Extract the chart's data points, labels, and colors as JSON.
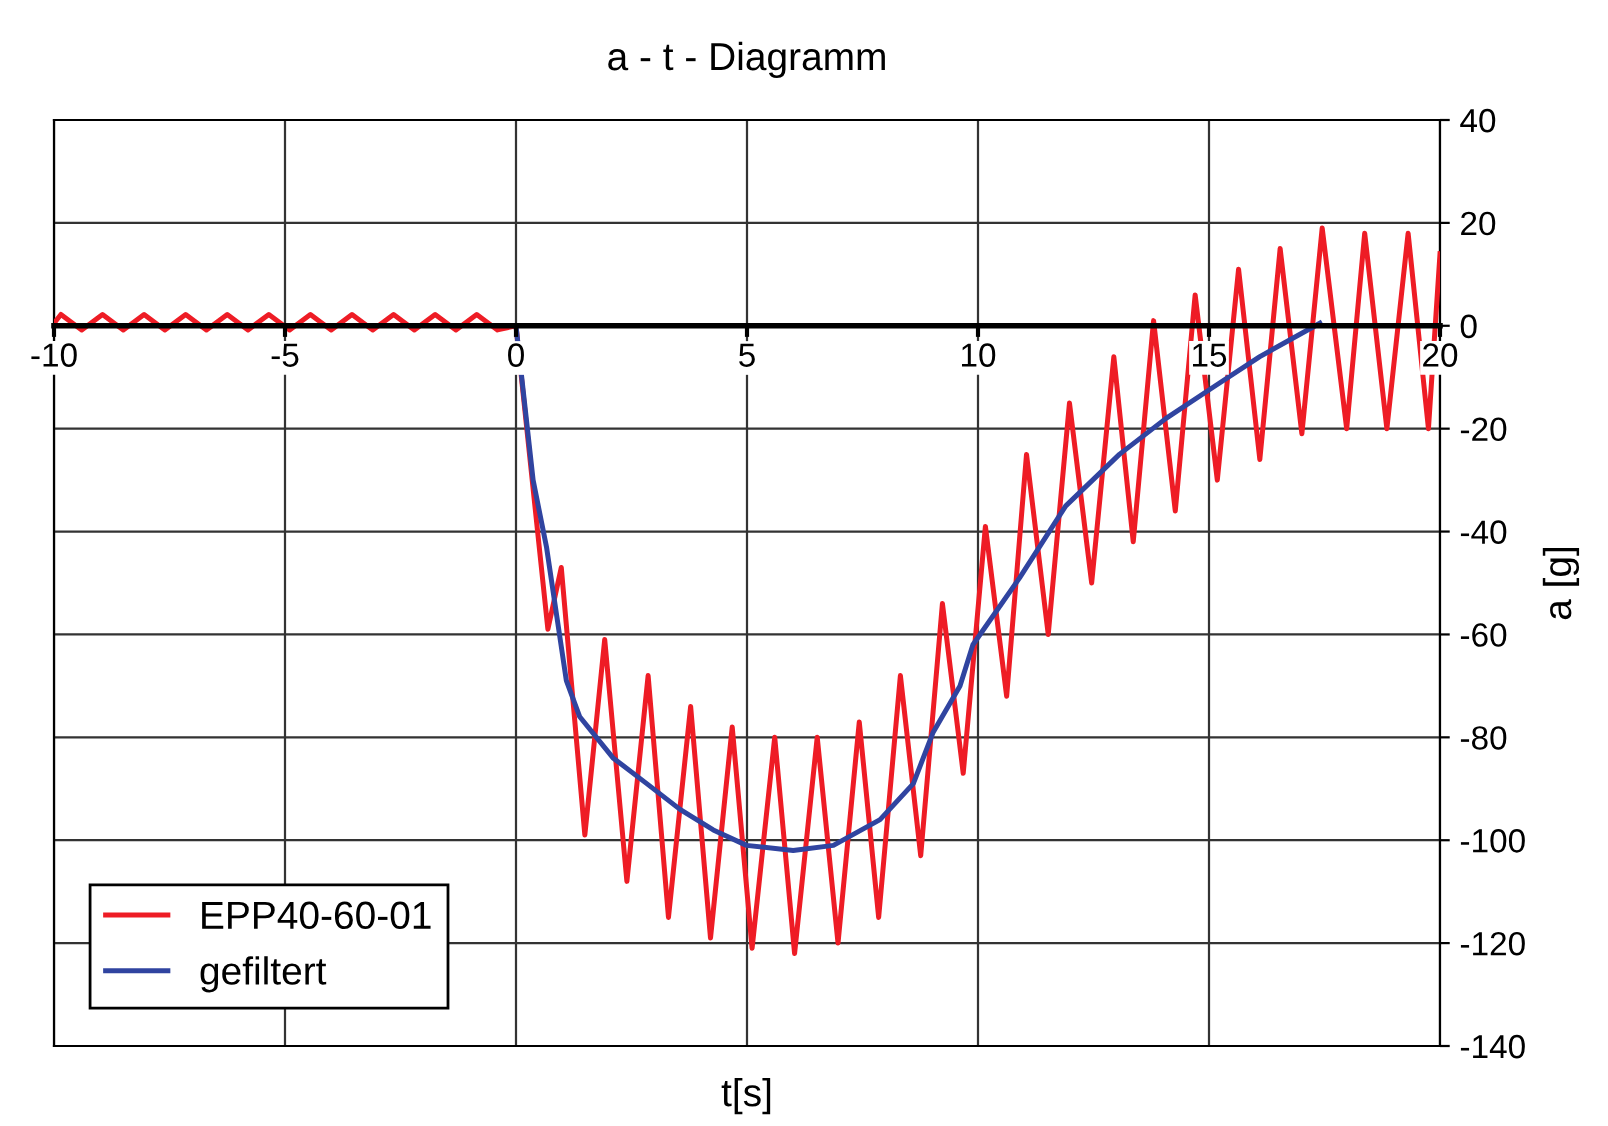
{
  "chart_data": {
    "type": "line",
    "title": "a - t - Diagramm",
    "xlabel": "t[s]",
    "ylabel": "a [g]",
    "xlim": [
      -10,
      20
    ],
    "xticks": [
      -10,
      -5,
      0,
      5,
      10,
      15,
      20
    ],
    "ylim": [
      -140,
      40
    ],
    "yticks": [
      -140,
      -120,
      -100,
      -80,
      -60,
      -40,
      -20,
      0,
      20,
      40
    ],
    "grid": true,
    "legend": "bottom left",
    "line_style": "solid",
    "marker": "none",
    "series": [
      {
        "name": "EPP40-60-01",
        "color": "#ee1c25",
        "x": [
          -10,
          -9.85,
          -9.4,
          -8.95,
          -8.5,
          -8.05,
          -7.6,
          -7.15,
          -6.7,
          -6.25,
          -5.8,
          -5.35,
          -4.9,
          -4.45,
          -4.0,
          -3.55,
          -3.1,
          -2.65,
          -2.2,
          -1.75,
          -1.3,
          -0.85,
          -0.4,
          0,
          0.69,
          0.98,
          1.49,
          1.92,
          2.4,
          2.86,
          3.3,
          3.78,
          4.21,
          4.68,
          5.11,
          5.6,
          6.03,
          6.52,
          6.97,
          7.43,
          7.85,
          8.32,
          8.76,
          9.23,
          9.68,
          10.16,
          10.62,
          11.05,
          11.52,
          11.98,
          12.46,
          12.94,
          13.36,
          13.8,
          14.27,
          14.7,
          15.18,
          15.64,
          16.1,
          16.54,
          17.01,
          17.45,
          17.98,
          18.37,
          18.85,
          19.31,
          19.75,
          20
        ],
        "values": [
          0.5,
          2.2,
          -0.8,
          2.2,
          -0.8,
          2.2,
          -0.8,
          2.2,
          -0.8,
          2.2,
          -0.8,
          2.2,
          -0.8,
          2.2,
          -0.8,
          2.2,
          -0.8,
          2.2,
          -0.8,
          2.2,
          -0.8,
          2.2,
          -0.8,
          0,
          -59,
          -47,
          -99,
          -61,
          -108,
          -68,
          -115,
          -74,
          -119,
          -78,
          -121,
          -80,
          -122,
          -80,
          -120,
          -77,
          -115,
          -68,
          -103,
          -54,
          -87,
          -39,
          -72,
          -25,
          -60,
          -15,
          -50,
          -6,
          -42,
          1,
          -36,
          6,
          -30,
          11,
          -26,
          15,
          -21,
          19,
          -20,
          18,
          -20,
          18,
          -20,
          14
        ]
      },
      {
        "name": "gefiltert",
        "color": "#3044a0",
        "x": [
          0,
          0.37,
          0.66,
          1.09,
          1.38,
          2.1,
          2.83,
          3.55,
          4.27,
          4.99,
          6.0,
          6.87,
          7.88,
          8.6,
          9.03,
          9.61,
          9.89,
          10.9,
          11.9,
          13.06,
          14.07,
          15.08,
          16.1,
          17.4
        ],
        "values": [
          0,
          -30,
          -43,
          -69,
          -76,
          -84,
          -89,
          -94,
          -98,
          -101,
          -102,
          -101,
          -96,
          -89,
          -79,
          -70,
          -62,
          -49,
          -35,
          -25,
          -18,
          -12,
          -6,
          0.5
        ]
      }
    ]
  }
}
